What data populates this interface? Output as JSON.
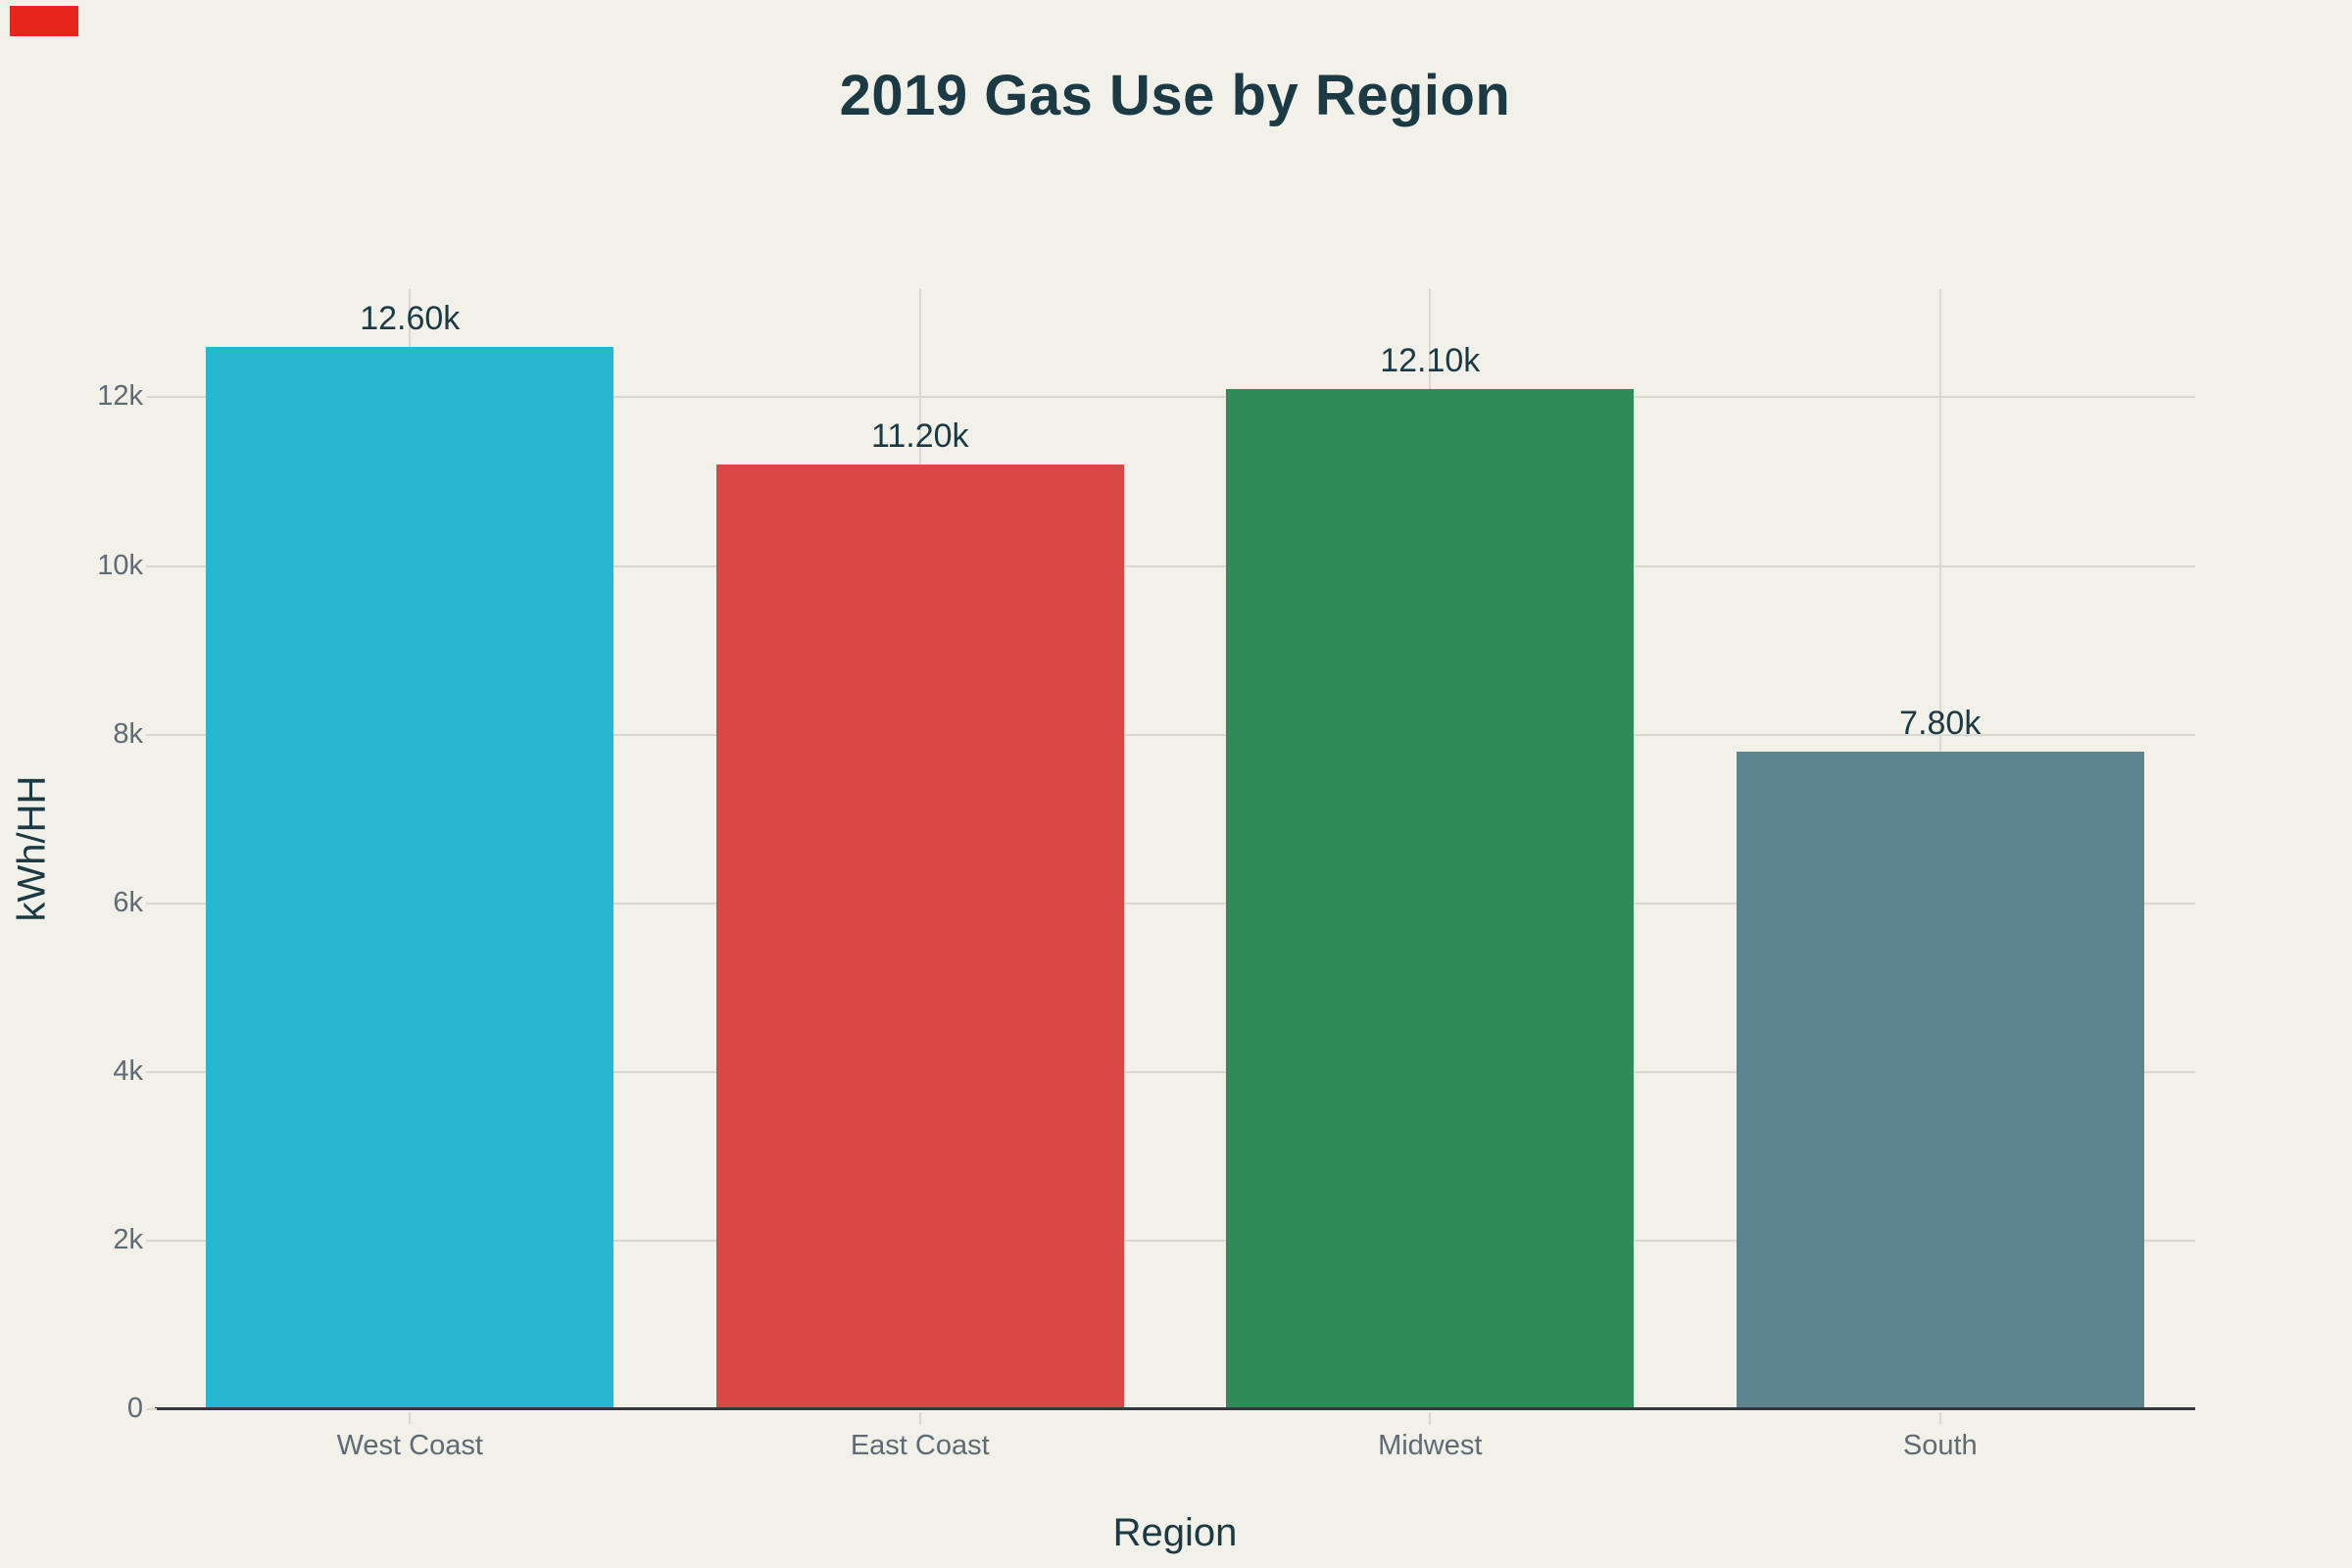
{
  "page": {
    "background": "#f1f1ea"
  },
  "record_indicator": {
    "color": "#e8251d"
  },
  "chart_data": {
    "type": "bar",
    "title": "2019 Gas Use by Region",
    "xlabel": "Region",
    "ylabel": "kWh/HH",
    "categories": [
      "West Coast",
      "East Coast",
      "Midwest",
      "South"
    ],
    "values": [
      12600,
      11200,
      12100,
      7800
    ],
    "value_labels": [
      "12.60k",
      "11.20k",
      "12.10k",
      "7.80k"
    ],
    "bar_colors": [
      "#26b7ce",
      "#d94844",
      "#2f8b57",
      "#5c848e"
    ],
    "yticks": [
      {
        "value": 0,
        "label": "0"
      },
      {
        "value": 2000,
        "label": "2k"
      },
      {
        "value": 4000,
        "label": "4k"
      },
      {
        "value": 6000,
        "label": "6k"
      },
      {
        "value": 8000,
        "label": "8k"
      },
      {
        "value": 10000,
        "label": "10k"
      },
      {
        "value": 12000,
        "label": "12k"
      }
    ],
    "ylim": [
      0,
      13275
    ],
    "grid": true,
    "legend": "none",
    "styles": {
      "text_color": "#1c3a43",
      "tick_label_color": "#5f6a72",
      "grid_color": "#dbd8d0",
      "axis_line_color": "#33383b"
    }
  }
}
